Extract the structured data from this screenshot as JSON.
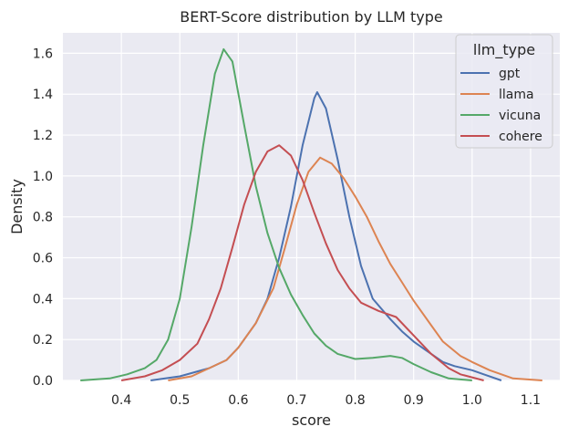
{
  "chart_data": {
    "type": "line",
    "title": "BERT-Score distribution by LLM type",
    "xlabel": "score",
    "ylabel": "Density",
    "xlim": [
      0.3,
      1.15
    ],
    "ylim": [
      0,
      1.7
    ],
    "x_ticks": [
      "0.4",
      "0.5",
      "0.6",
      "0.7",
      "0.8",
      "0.9",
      "1.0",
      "1.1"
    ],
    "y_ticks": [
      "0.0",
      "0.2",
      "0.4",
      "0.6",
      "0.8",
      "1.0",
      "1.2",
      "1.4",
      "1.6"
    ],
    "grid": true,
    "background": "#eaeaf2",
    "legend": {
      "title": "llm_type",
      "placement": "top-right"
    },
    "series": [
      {
        "name": "gpt",
        "color": "#4c72b0",
        "points": [
          [
            0.45,
            0.0
          ],
          [
            0.5,
            0.02
          ],
          [
            0.55,
            0.06
          ],
          [
            0.58,
            0.1
          ],
          [
            0.6,
            0.16
          ],
          [
            0.63,
            0.28
          ],
          [
            0.65,
            0.4
          ],
          [
            0.67,
            0.6
          ],
          [
            0.69,
            0.85
          ],
          [
            0.71,
            1.15
          ],
          [
            0.73,
            1.38
          ],
          [
            0.735,
            1.41
          ],
          [
            0.75,
            1.33
          ],
          [
            0.77,
            1.08
          ],
          [
            0.79,
            0.8
          ],
          [
            0.81,
            0.56
          ],
          [
            0.83,
            0.4
          ],
          [
            0.86,
            0.3
          ],
          [
            0.88,
            0.24
          ],
          [
            0.9,
            0.19
          ],
          [
            0.92,
            0.15
          ],
          [
            0.95,
            0.09
          ],
          [
            0.97,
            0.07
          ],
          [
            1.0,
            0.05
          ],
          [
            1.02,
            0.03
          ],
          [
            1.05,
            0.0
          ]
        ]
      },
      {
        "name": "llama",
        "color": "#dd8452",
        "points": [
          [
            0.48,
            0.0
          ],
          [
            0.52,
            0.02
          ],
          [
            0.55,
            0.06
          ],
          [
            0.58,
            0.1
          ],
          [
            0.6,
            0.16
          ],
          [
            0.63,
            0.28
          ],
          [
            0.66,
            0.45
          ],
          [
            0.68,
            0.65
          ],
          [
            0.7,
            0.86
          ],
          [
            0.72,
            1.02
          ],
          [
            0.74,
            1.09
          ],
          [
            0.76,
            1.06
          ],
          [
            0.78,
            0.99
          ],
          [
            0.8,
            0.9
          ],
          [
            0.82,
            0.8
          ],
          [
            0.84,
            0.68
          ],
          [
            0.86,
            0.57
          ],
          [
            0.88,
            0.48
          ],
          [
            0.9,
            0.39
          ],
          [
            0.93,
            0.27
          ],
          [
            0.95,
            0.19
          ],
          [
            0.98,
            0.12
          ],
          [
            1.0,
            0.09
          ],
          [
            1.03,
            0.05
          ],
          [
            1.07,
            0.01
          ],
          [
            1.12,
            0.0
          ]
        ]
      },
      {
        "name": "vicuna",
        "color": "#55a868",
        "points": [
          [
            0.33,
            0.0
          ],
          [
            0.38,
            0.01
          ],
          [
            0.41,
            0.03
          ],
          [
            0.44,
            0.06
          ],
          [
            0.46,
            0.1
          ],
          [
            0.48,
            0.2
          ],
          [
            0.5,
            0.4
          ],
          [
            0.52,
            0.75
          ],
          [
            0.54,
            1.15
          ],
          [
            0.56,
            1.5
          ],
          [
            0.575,
            1.62
          ],
          [
            0.59,
            1.56
          ],
          [
            0.61,
            1.25
          ],
          [
            0.63,
            0.95
          ],
          [
            0.65,
            0.72
          ],
          [
            0.67,
            0.55
          ],
          [
            0.69,
            0.42
          ],
          [
            0.71,
            0.32
          ],
          [
            0.73,
            0.23
          ],
          [
            0.75,
            0.17
          ],
          [
            0.77,
            0.13
          ],
          [
            0.8,
            0.105
          ],
          [
            0.83,
            0.11
          ],
          [
            0.86,
            0.12
          ],
          [
            0.88,
            0.11
          ],
          [
            0.9,
            0.08
          ],
          [
            0.93,
            0.04
          ],
          [
            0.96,
            0.01
          ],
          [
            1.0,
            0.0
          ]
        ]
      },
      {
        "name": "cohere",
        "color": "#c44e52",
        "points": [
          [
            0.4,
            0.0
          ],
          [
            0.44,
            0.02
          ],
          [
            0.47,
            0.05
          ],
          [
            0.5,
            0.1
          ],
          [
            0.53,
            0.18
          ],
          [
            0.55,
            0.3
          ],
          [
            0.57,
            0.45
          ],
          [
            0.59,
            0.65
          ],
          [
            0.61,
            0.86
          ],
          [
            0.63,
            1.02
          ],
          [
            0.65,
            1.12
          ],
          [
            0.67,
            1.15
          ],
          [
            0.69,
            1.1
          ],
          [
            0.71,
            0.98
          ],
          [
            0.73,
            0.82
          ],
          [
            0.75,
            0.67
          ],
          [
            0.77,
            0.54
          ],
          [
            0.79,
            0.45
          ],
          [
            0.81,
            0.38
          ],
          [
            0.84,
            0.34
          ],
          [
            0.87,
            0.31
          ],
          [
            0.9,
            0.22
          ],
          [
            0.93,
            0.13
          ],
          [
            0.96,
            0.06
          ],
          [
            0.98,
            0.03
          ],
          [
            1.02,
            0.0
          ]
        ]
      }
    ]
  }
}
